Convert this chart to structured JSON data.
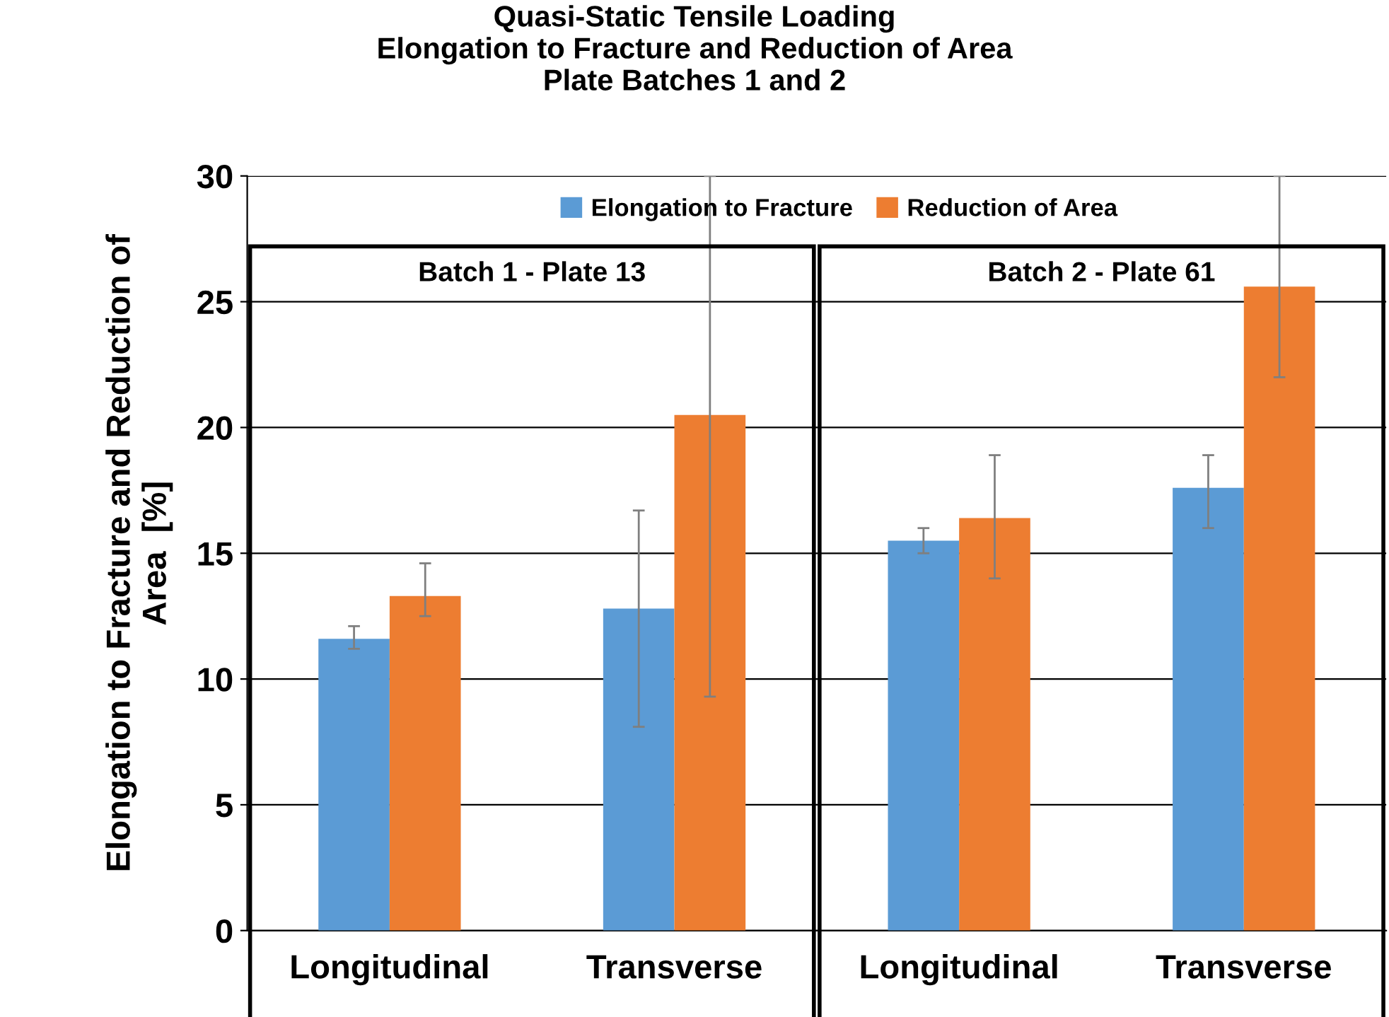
{
  "chart_data": {
    "type": "bar",
    "title": "Quasi-Static Tensile Loading\nElongation to Fracture and Reduction of Area\nPlate Batches 1 and 2",
    "ylabel": "Elongation to Fracture and Reduction of\nArea  [%]",
    "categories": [
      "Longitudinal",
      "Transverse",
      "Longitudinal",
      "Transverse"
    ],
    "series": [
      {
        "name": "Elongation to Fracture",
        "color": "#5b9bd5",
        "values": [
          11.6,
          12.8,
          15.5,
          17.6
        ],
        "errors": [
          [
            11.2,
            12.1
          ],
          [
            8.1,
            16.7
          ],
          [
            15.0,
            16.0
          ],
          [
            16.0,
            18.9
          ]
        ]
      },
      {
        "name": "Reduction of Area",
        "color": "#ed7d31",
        "values": [
          13.3,
          20.5,
          16.4,
          25.6
        ],
        "errors": [
          [
            12.5,
            14.6
          ],
          [
            9.3,
            30
          ],
          [
            14.0,
            18.9
          ],
          [
            22.0,
            30
          ]
        ]
      }
    ],
    "annotations": [
      "Batch 1 - Plate 13",
      "Batch 2 - Plate 61"
    ],
    "ylim": [
      0,
      30
    ],
    "yticks": [
      0,
      5,
      10,
      15,
      20,
      25,
      30
    ],
    "grid": "y",
    "legend": "top"
  }
}
